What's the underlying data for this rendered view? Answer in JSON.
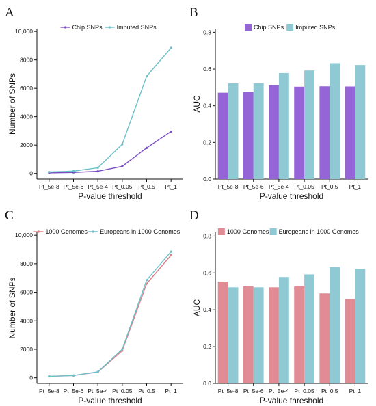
{
  "panels": [
    {
      "letter": "A",
      "chart_data": {
        "type": "line",
        "categories": [
          "Pt_5e-8",
          "Pt_5e-6",
          "Pt_5e-4",
          "Pt_0.05",
          "Pt_0.5",
          "Pt_1"
        ],
        "series": [
          {
            "name": "Chip SNPs",
            "color": "#7b4fc4",
            "values": [
              40,
              70,
              150,
              500,
              1800,
              2950
            ]
          },
          {
            "name": "Imputed SNPs",
            "color": "#6bbfc9",
            "values": [
              100,
              160,
              400,
              2050,
              6850,
              8850
            ]
          }
        ],
        "xlabel": "P-value threshold",
        "ylabel": "Number of SNPs",
        "ylim": [
          -400,
          10200
        ],
        "yticks": [
          0,
          2000,
          4000,
          6000,
          8000,
          10000
        ],
        "ytick_labels": [
          "0",
          "2000",
          "4000",
          "6000",
          "8000",
          "10,000"
        ],
        "legend": "top-center"
      }
    },
    {
      "letter": "B",
      "chart_data": {
        "type": "bar",
        "categories": [
          "Pt_5e-8",
          "Pt_5e-6",
          "Pt_5e-4",
          "Pt_0.05",
          "Pt_0.5",
          "Pt_1"
        ],
        "series": [
          {
            "name": "Chip SNPs",
            "color": "#9565d8",
            "values": [
              0.471,
              0.474,
              0.512,
              0.504,
              0.506,
              0.505
            ]
          },
          {
            "name": "Imputed SNPs",
            "color": "#8ec9d4",
            "values": [
              0.522,
              0.522,
              0.578,
              0.592,
              0.632,
              0.622
            ]
          }
        ],
        "xlabel": "P-value threshold",
        "ylabel": "AUC",
        "ylim": [
          0,
          0.82
        ],
        "yticks": [
          0,
          0.2,
          0.4,
          0.6,
          0.8
        ],
        "ytick_labels": [
          "0.0",
          "0.2",
          "0.4",
          "0.6",
          "0.8"
        ],
        "legend": "top-center"
      }
    },
    {
      "letter": "C",
      "chart_data": {
        "type": "line",
        "categories": [
          "Pt_5e-8",
          "Pt_5e-6",
          "Pt_5e-4",
          "Pt_0.05",
          "Pt_0.5",
          "Pt_1"
        ],
        "series": [
          {
            "name": "1000 Genomes",
            "color": "#e07a85",
            "values": [
              100,
              160,
              400,
              1900,
              6600,
              8600
            ]
          },
          {
            "name": "Europeans in 1000 Genomes",
            "color": "#6bbfc9",
            "values": [
              100,
              160,
              420,
              2000,
              6850,
              8850
            ]
          }
        ],
        "xlabel": "P-value threshold",
        "ylabel": "Number of SNPs",
        "ylim": [
          -400,
          10200
        ],
        "yticks": [
          0,
          2000,
          4000,
          6000,
          8000,
          10000
        ],
        "ytick_labels": [
          "0",
          "2000",
          "4000",
          "6000",
          "8000",
          "10,000"
        ],
        "legend": "top-center"
      }
    },
    {
      "letter": "D",
      "chart_data": {
        "type": "bar",
        "categories": [
          "Pt_5e-8",
          "Pt_5e-6",
          "Pt_5e-4",
          "Pt_0.05",
          "Pt_0.5",
          "Pt_1"
        ],
        "series": [
          {
            "name": "1000 Genomes",
            "color": "#e18c95",
            "values": [
              0.553,
              0.527,
              0.522,
              0.527,
              0.489,
              0.458
            ]
          },
          {
            "name": "Europeans in 1000 Genomes",
            "color": "#8ec9d4",
            "values": [
              0.522,
              0.522,
              0.578,
              0.592,
              0.632,
              0.622
            ]
          }
        ],
        "xlabel": "P-value threshold",
        "ylabel": "AUC",
        "ylim": [
          0,
          0.82
        ],
        "yticks": [
          0,
          0.2,
          0.4,
          0.6,
          0.8
        ],
        "ytick_labels": [
          "0.0",
          "0.2",
          "0.4",
          "0.6",
          "0.8"
        ],
        "legend": "top-center"
      }
    }
  ]
}
